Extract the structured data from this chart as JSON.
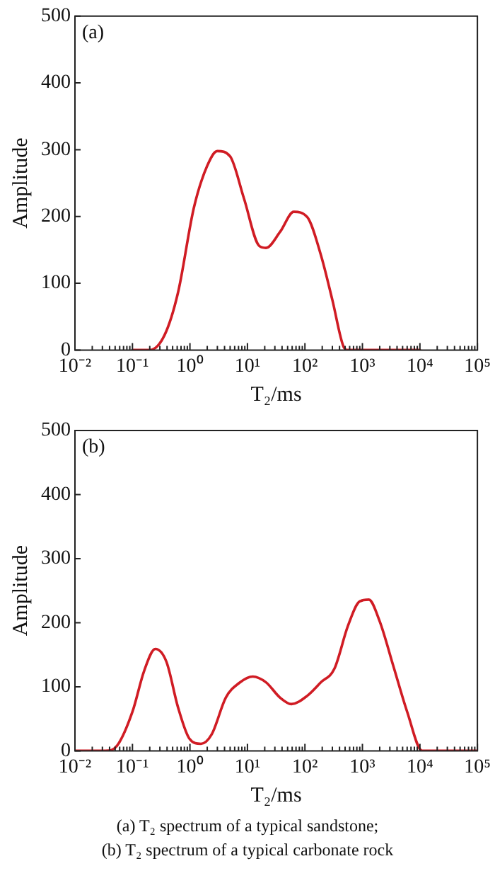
{
  "chart_data": [
    {
      "type": "line",
      "title": "(a)",
      "xlabel": "T₂/ms",
      "ylabel": "Amplitude",
      "log": "x",
      "grid": false,
      "legend": false,
      "marker": "none",
      "line_style": "solid",
      "xlim": [
        0.01,
        100000
      ],
      "ylim": [
        0,
        500
      ],
      "yticks": [
        0,
        100,
        200,
        300,
        400,
        500
      ],
      "xticks": [
        {
          "value": 0.01,
          "label": "10⁻²"
        },
        {
          "value": 0.02,
          "label": null
        },
        {
          "value": 0.03,
          "label": null
        },
        {
          "value": 0.04,
          "label": null
        },
        {
          "value": 0.05,
          "label": null
        },
        {
          "value": 0.06,
          "label": null
        },
        {
          "value": 0.07,
          "label": null
        },
        {
          "value": 0.08,
          "label": null
        },
        {
          "value": 0.09,
          "label": null
        },
        {
          "value": 0.1,
          "label": "10⁻¹"
        },
        {
          "value": 0.2,
          "label": null
        },
        {
          "value": 0.3,
          "label": null
        },
        {
          "value": 0.4,
          "label": null
        },
        {
          "value": 0.5,
          "label": null
        },
        {
          "value": 0.6,
          "label": null
        },
        {
          "value": 0.7,
          "label": null
        },
        {
          "value": 0.8,
          "label": null
        },
        {
          "value": 0.9,
          "label": null
        },
        {
          "value": 1,
          "label": "10⁰"
        },
        {
          "value": 2,
          "label": null
        },
        {
          "value": 3,
          "label": null
        },
        {
          "value": 4,
          "label": null
        },
        {
          "value": 5,
          "label": null
        },
        {
          "value": 6,
          "label": null
        },
        {
          "value": 7,
          "label": null
        },
        {
          "value": 8,
          "label": null
        },
        {
          "value": 9,
          "label": null
        },
        {
          "value": 10,
          "label": "10¹"
        },
        {
          "value": 20,
          "label": null
        },
        {
          "value": 30,
          "label": null
        },
        {
          "value": 40,
          "label": null
        },
        {
          "value": 50,
          "label": null
        },
        {
          "value": 60,
          "label": null
        },
        {
          "value": 70,
          "label": null
        },
        {
          "value": 80,
          "label": null
        },
        {
          "value": 90,
          "label": null
        },
        {
          "value": 100,
          "label": "10²"
        },
        {
          "value": 200,
          "label": null
        },
        {
          "value": 300,
          "label": null
        },
        {
          "value": 400,
          "label": null
        },
        {
          "value": 500,
          "label": null
        },
        {
          "value": 600,
          "label": null
        },
        {
          "value": 700,
          "label": null
        },
        {
          "value": 800,
          "label": null
        },
        {
          "value": 900,
          "label": null
        },
        {
          "value": 1000,
          "label": "10³"
        },
        {
          "value": 2000,
          "label": null
        },
        {
          "value": 3000,
          "label": null
        },
        {
          "value": 4000,
          "label": null
        },
        {
          "value": 5000,
          "label": null
        },
        {
          "value": 6000,
          "label": null
        },
        {
          "value": 7000,
          "label": null
        },
        {
          "value": 8000,
          "label": null
        },
        {
          "value": 9000,
          "label": null
        },
        {
          "value": 10000,
          "label": "10⁴"
        },
        {
          "value": 20000,
          "label": null
        },
        {
          "value": 30000,
          "label": null
        },
        {
          "value": 40000,
          "label": null
        },
        {
          "value": 50000,
          "label": null
        },
        {
          "value": 60000,
          "label": null
        },
        {
          "value": 70000,
          "label": null
        },
        {
          "value": 80000,
          "label": null
        },
        {
          "value": 90000,
          "label": null
        },
        {
          "value": 100000,
          "label": "10⁵"
        }
      ],
      "series": [
        {
          "color": "#d01c24",
          "x": [
            0.1,
            0.2,
            0.36,
            0.62,
            1.17,
            2.0,
            3.0,
            5.0,
            8.7,
            16,
            21,
            37,
            64,
            110,
            190,
            300,
            470,
            560,
            1000,
            10000
          ],
          "values": [
            0,
            0,
            22,
            86,
            213,
            276,
            298,
            290,
            227,
            156,
            153,
            177,
            207,
            199,
            142,
            75,
            5,
            0,
            0,
            0
          ]
        }
      ]
    },
    {
      "type": "line",
      "title": "(b)",
      "xlabel": "T₂/ms",
      "ylabel": "Amplitude",
      "log": "x",
      "grid": false,
      "legend": false,
      "marker": "none",
      "line_style": "solid",
      "xlim": [
        0.01,
        100000
      ],
      "ylim": [
        0,
        500
      ],
      "yticks": [
        0,
        100,
        200,
        300,
        400,
        500
      ],
      "xticks": [
        {
          "value": 0.01,
          "label": "10⁻²"
        },
        {
          "value": 0.02,
          "label": null
        },
        {
          "value": 0.03,
          "label": null
        },
        {
          "value": 0.04,
          "label": null
        },
        {
          "value": 0.05,
          "label": null
        },
        {
          "value": 0.06,
          "label": null
        },
        {
          "value": 0.07,
          "label": null
        },
        {
          "value": 0.08,
          "label": null
        },
        {
          "value": 0.09,
          "label": null
        },
        {
          "value": 0.1,
          "label": "10⁻¹"
        },
        {
          "value": 0.2,
          "label": null
        },
        {
          "value": 0.3,
          "label": null
        },
        {
          "value": 0.4,
          "label": null
        },
        {
          "value": 0.5,
          "label": null
        },
        {
          "value": 0.6,
          "label": null
        },
        {
          "value": 0.7,
          "label": null
        },
        {
          "value": 0.8,
          "label": null
        },
        {
          "value": 0.9,
          "label": null
        },
        {
          "value": 1,
          "label": "10⁰"
        },
        {
          "value": 2,
          "label": null
        },
        {
          "value": 3,
          "label": null
        },
        {
          "value": 4,
          "label": null
        },
        {
          "value": 5,
          "label": null
        },
        {
          "value": 6,
          "label": null
        },
        {
          "value": 7,
          "label": null
        },
        {
          "value": 8,
          "label": null
        },
        {
          "value": 9,
          "label": null
        },
        {
          "value": 10,
          "label": "10¹"
        },
        {
          "value": 20,
          "label": null
        },
        {
          "value": 30,
          "label": null
        },
        {
          "value": 40,
          "label": null
        },
        {
          "value": 50,
          "label": null
        },
        {
          "value": 60,
          "label": null
        },
        {
          "value": 70,
          "label": null
        },
        {
          "value": 80,
          "label": null
        },
        {
          "value": 90,
          "label": null
        },
        {
          "value": 100,
          "label": "10²"
        },
        {
          "value": 200,
          "label": null
        },
        {
          "value": 300,
          "label": null
        },
        {
          "value": 400,
          "label": null
        },
        {
          "value": 500,
          "label": null
        },
        {
          "value": 600,
          "label": null
        },
        {
          "value": 700,
          "label": null
        },
        {
          "value": 800,
          "label": null
        },
        {
          "value": 900,
          "label": null
        },
        {
          "value": 1000,
          "label": "10³"
        },
        {
          "value": 2000,
          "label": null
        },
        {
          "value": 3000,
          "label": null
        },
        {
          "value": 4000,
          "label": null
        },
        {
          "value": 5000,
          "label": null
        },
        {
          "value": 6000,
          "label": null
        },
        {
          "value": 7000,
          "label": null
        },
        {
          "value": 8000,
          "label": null
        },
        {
          "value": 9000,
          "label": null
        },
        {
          "value": 10000,
          "label": "10⁴"
        },
        {
          "value": 20000,
          "label": null
        },
        {
          "value": 30000,
          "label": null
        },
        {
          "value": 40000,
          "label": null
        },
        {
          "value": 50000,
          "label": null
        },
        {
          "value": 60000,
          "label": null
        },
        {
          "value": 70000,
          "label": null
        },
        {
          "value": 80000,
          "label": null
        },
        {
          "value": 90000,
          "label": null
        },
        {
          "value": 100000,
          "label": "10⁵"
        }
      ],
      "annotations": [
        "(a) T₂ spectrum of a typical sandstone;",
        "(b) T₂ spectrum of a typical carbonate rock"
      ],
      "series": [
        {
          "color": "#d01c24",
          "x": [
            0.01,
            0.034,
            0.054,
            0.1,
            0.16,
            0.25,
            0.39,
            0.62,
            0.98,
            1.55,
            2.4,
            4.2,
            7.2,
            12.4,
            21,
            37,
            58,
            110,
            190,
            325,
            560,
            890,
            1290,
            2000,
            3460,
            6000,
            11000,
            100000
          ],
          "values": [
            0,
            0,
            8,
            61,
            125,
            159,
            139,
            68,
            19,
            11,
            26,
            83,
            106,
            116,
            107,
            83,
            73,
            86,
            107,
            128,
            195,
            233,
            236,
            202,
            132,
            61,
            0,
            0
          ]
        }
      ]
    }
  ]
}
